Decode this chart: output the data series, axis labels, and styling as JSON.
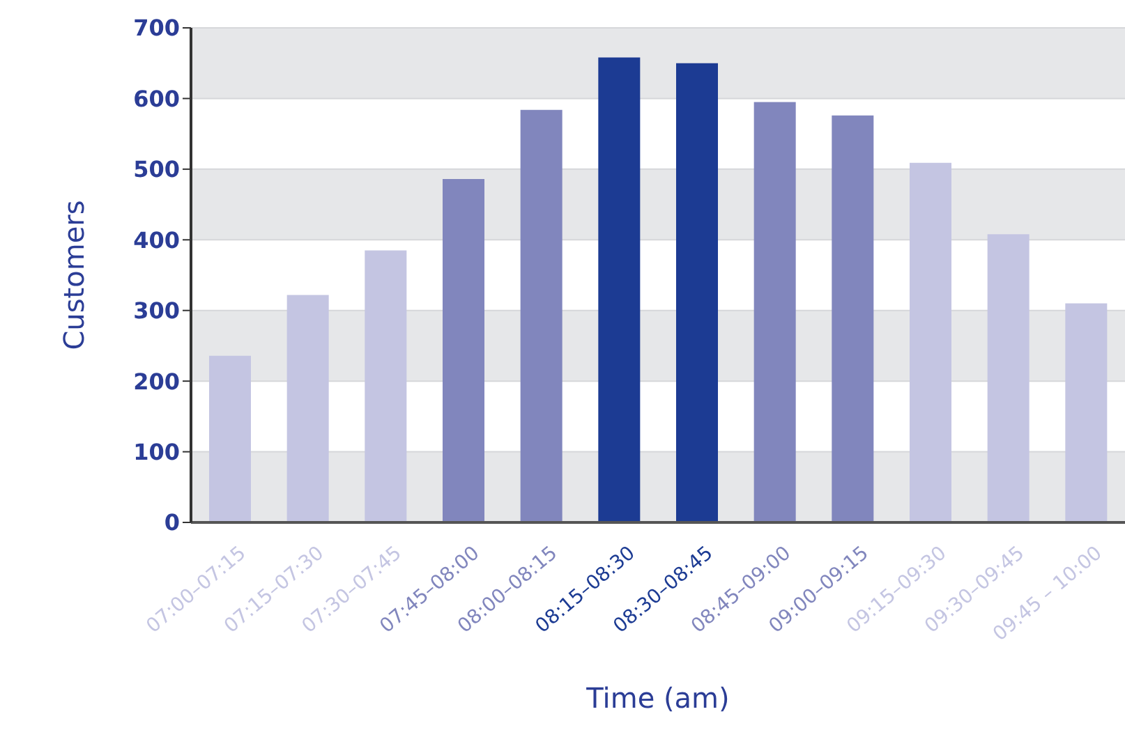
{
  "chart_data": {
    "type": "bar",
    "xlabel": "Time (am)",
    "ylabel": "Customers",
    "categories": [
      "07:00–07:15",
      "07:15–07:30",
      "07:30–07:45",
      "07:45–08:00",
      "08:00–08:15",
      "08:15–08:30",
      "08:30–08:45",
      "08:45–09:00",
      "09:00–09:15",
      "09:15–09:30",
      "09:30–09:45",
      "09:45 – 10:00"
    ],
    "values": [
      236,
      322,
      385,
      486,
      584,
      658,
      650,
      595,
      576,
      509,
      408,
      310
    ],
    "colors": [
      "#c4c5e2",
      "#c4c5e2",
      "#c4c5e2",
      "#8186bd",
      "#8186bd",
      "#1c3b93",
      "#1c3b93",
      "#8186bd",
      "#8186bd",
      "#c4c5e2",
      "#c4c5e2",
      "#c4c5e2"
    ],
    "ylim": [
      0,
      700
    ],
    "yticks": [
      0,
      100,
      200,
      300,
      400,
      500,
      600,
      700
    ],
    "grid": "y"
  }
}
